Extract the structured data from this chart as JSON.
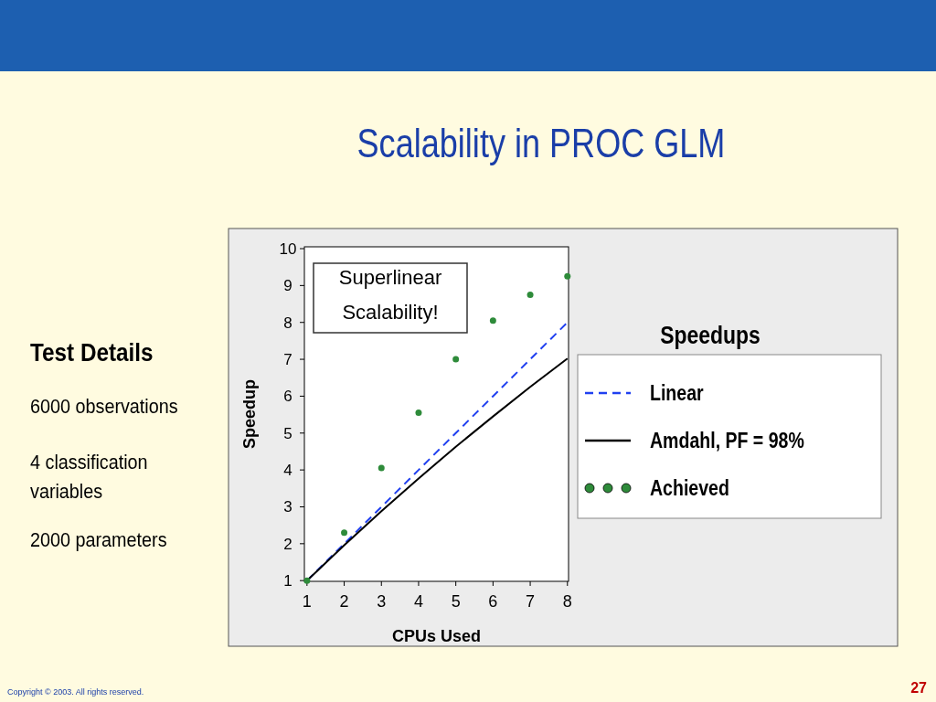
{
  "chart_data": {
    "type": "line",
    "title": "Scalability in PROC GLM",
    "xlabel": "CPUs Used",
    "ylabel": "Speedup",
    "legend_title": "Speedups",
    "legend": "right",
    "x": [
      1,
      2,
      3,
      4,
      5,
      6,
      7,
      8
    ],
    "series": [
      {
        "name": "Linear",
        "color": "#2040f0",
        "line_style": "dashed",
        "marker": "none",
        "values": [
          1,
          2,
          3,
          4,
          5,
          6,
          7,
          8
        ]
      },
      {
        "name": "Amdahl, PF = 98%",
        "color": "#000000",
        "line_style": "solid",
        "marker": "none",
        "values": [
          1,
          1.96,
          2.88,
          3.77,
          4.63,
          5.45,
          6.25,
          7.02
        ]
      },
      {
        "name": "Achieved",
        "type": "scatter",
        "color": "#2e8b3a",
        "marker": "circle",
        "values": [
          1,
          2.3,
          4.05,
          5.55,
          7.0,
          8.05,
          8.75,
          9.25
        ]
      }
    ],
    "xlim": [
      0.93,
      8.03
    ],
    "ylim": [
      0.98,
      10.05
    ],
    "xticks": [
      1,
      2,
      3,
      4,
      5,
      6,
      7,
      8
    ],
    "yticks": [
      1,
      2,
      3,
      4,
      5,
      6,
      7,
      8,
      9,
      10
    ],
    "grid": false,
    "annotations": [
      "Test Details",
      "6000 observations",
      "4 classification variables",
      "2000 parameters",
      "Superlinear Scalability!",
      "Copyright © 2003. All rights reserved.",
      "27"
    ]
  }
}
